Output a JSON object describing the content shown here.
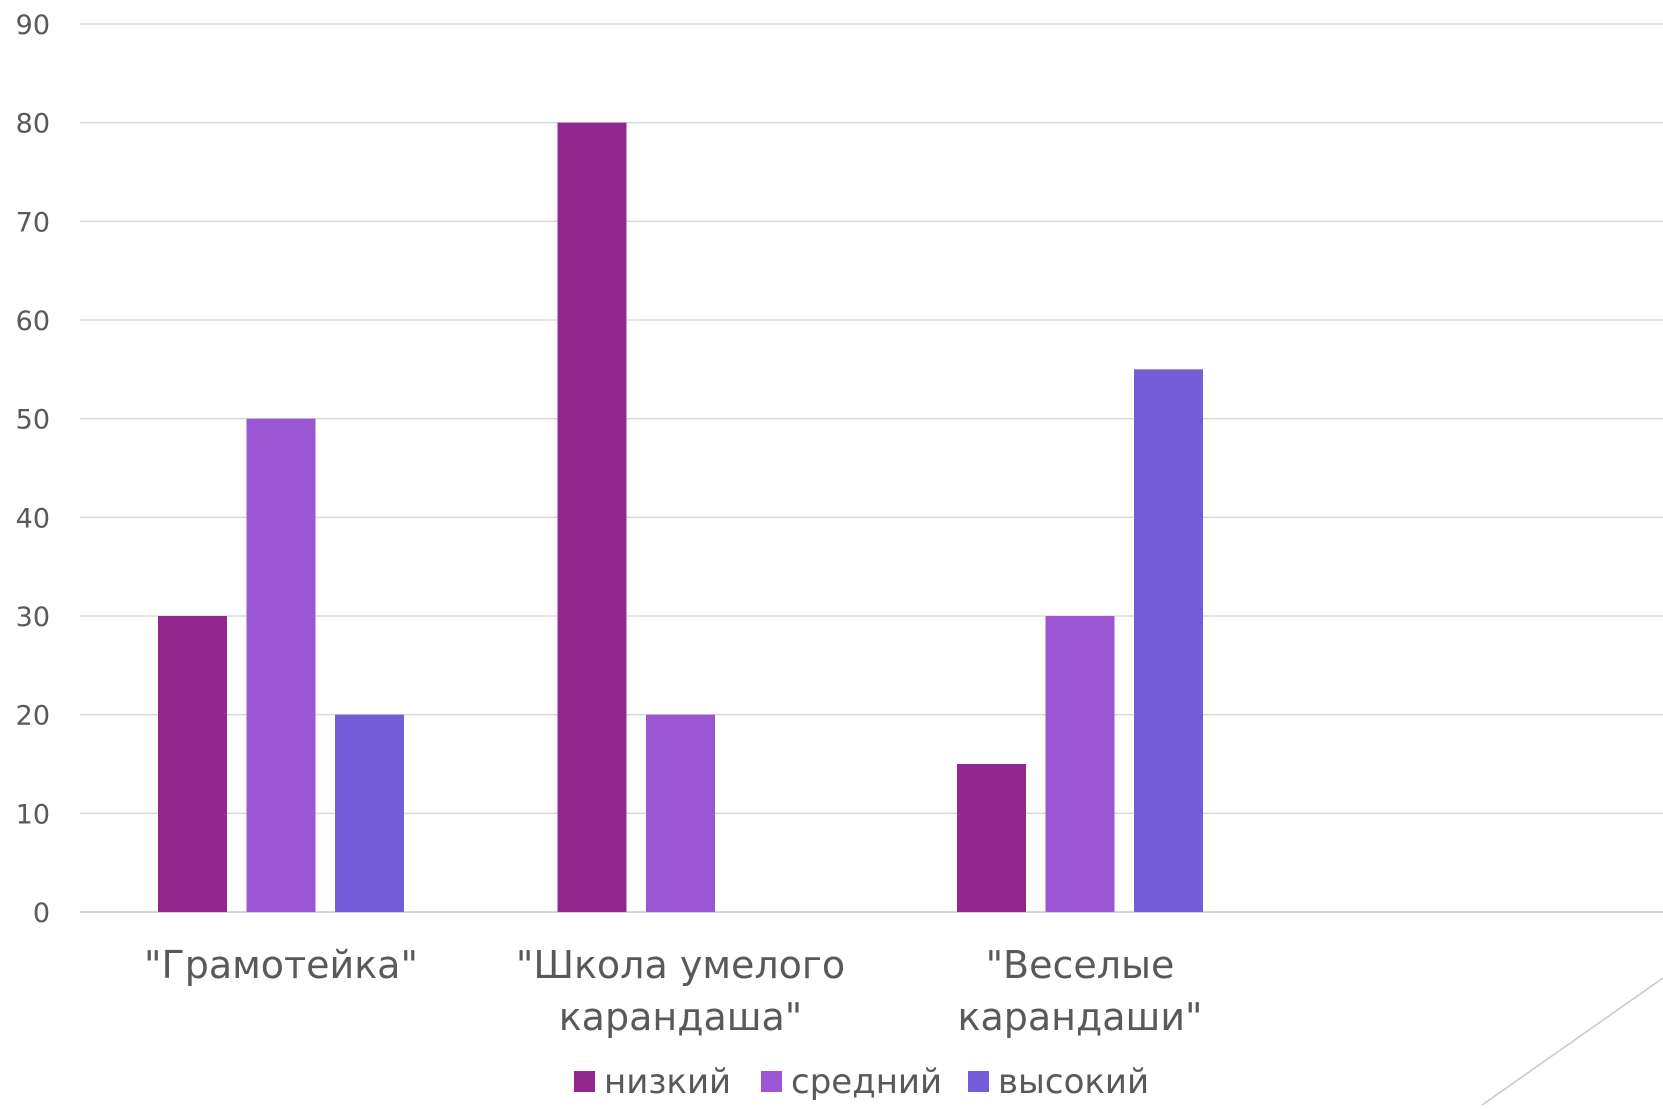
{
  "chart_data": {
    "type": "bar",
    "title": "",
    "xlabel": "",
    "ylabel": "",
    "ylim": [
      0,
      90
    ],
    "yticks": [
      0,
      10,
      20,
      30,
      40,
      50,
      60,
      70,
      80,
      90
    ],
    "grid": true,
    "legend_position": "bottom",
    "categories": [
      [
        "\"Грамотейка\""
      ],
      [
        "\"Школа умелого",
        "карандаша\""
      ],
      [
        "\"Веселые",
        "карандаши\""
      ]
    ],
    "series": [
      {
        "name": "низкий",
        "color": "#92278f",
        "values": [
          30,
          80,
          15
        ]
      },
      {
        "name": "средний",
        "color": "#9b57d3",
        "values": [
          50,
          20,
          30
        ]
      },
      {
        "name": "высокий",
        "color": "#755dd9",
        "values": [
          20,
          null,
          55
        ]
      }
    ]
  }
}
